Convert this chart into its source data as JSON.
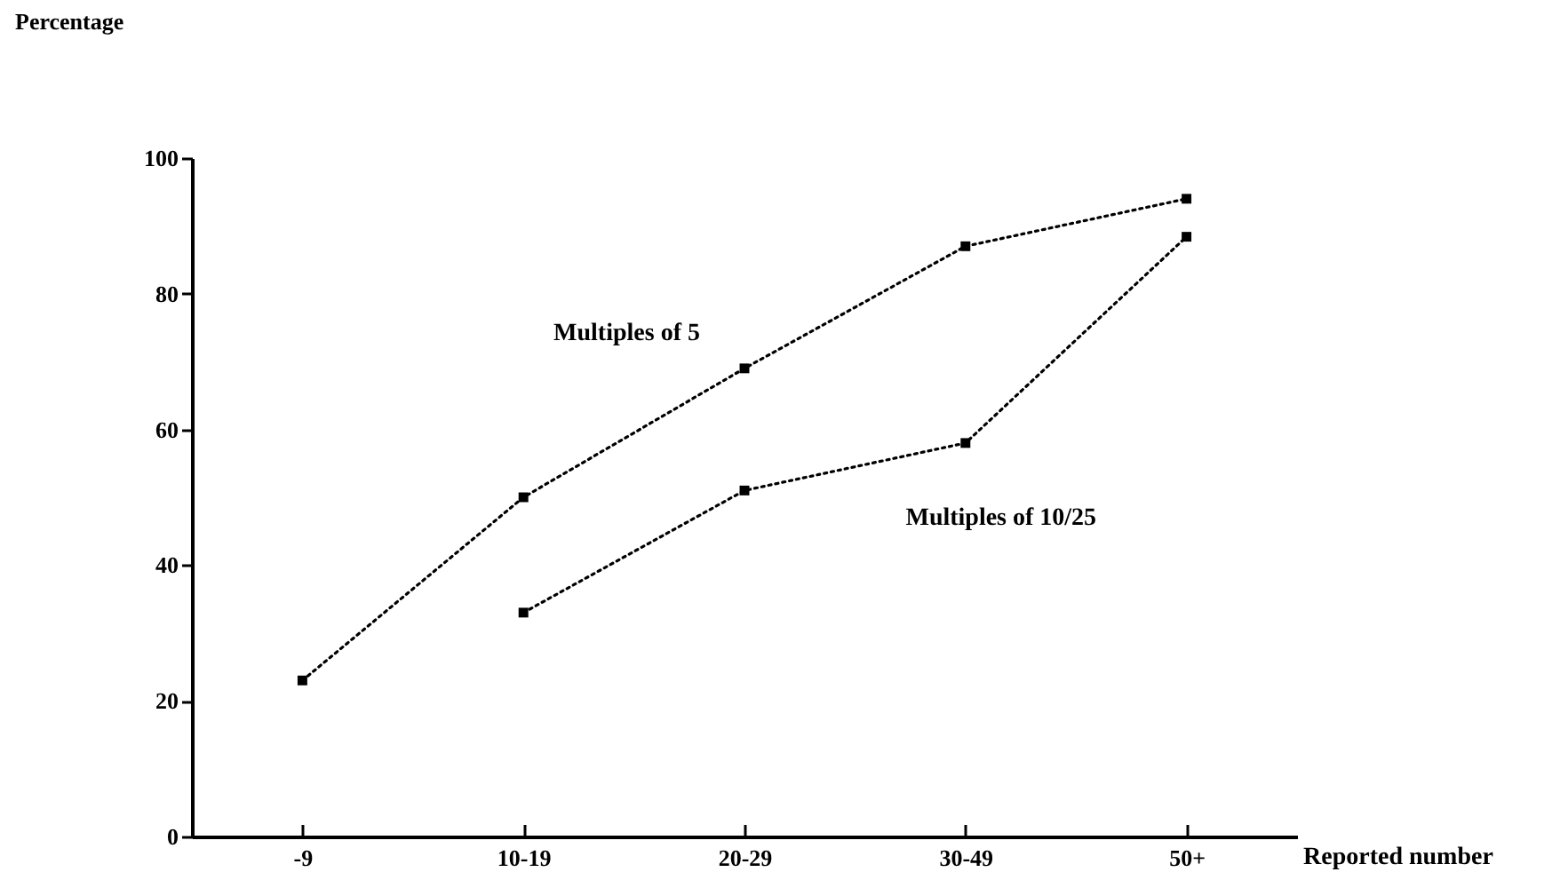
{
  "chart_data": {
    "type": "line",
    "ylabel": "Percentage",
    "xlabel": "Reported number",
    "categories": [
      "-9",
      "10-19",
      "20-29",
      "30-49",
      "50+"
    ],
    "series": [
      {
        "name": "Multiples of 5",
        "color": "#000000",
        "values": [
          23,
          50,
          69,
          87,
          94
        ]
      },
      {
        "name": "Multiples of 10/25",
        "color": "#000000",
        "values": [
          null,
          33,
          51,
          58,
          88.4
        ]
      }
    ],
    "ylim": [
      0,
      100
    ],
    "yticks": [
      0,
      20,
      40,
      60,
      80,
      100
    ],
    "grid": false,
    "marker": "square",
    "line_style": "dotted"
  }
}
